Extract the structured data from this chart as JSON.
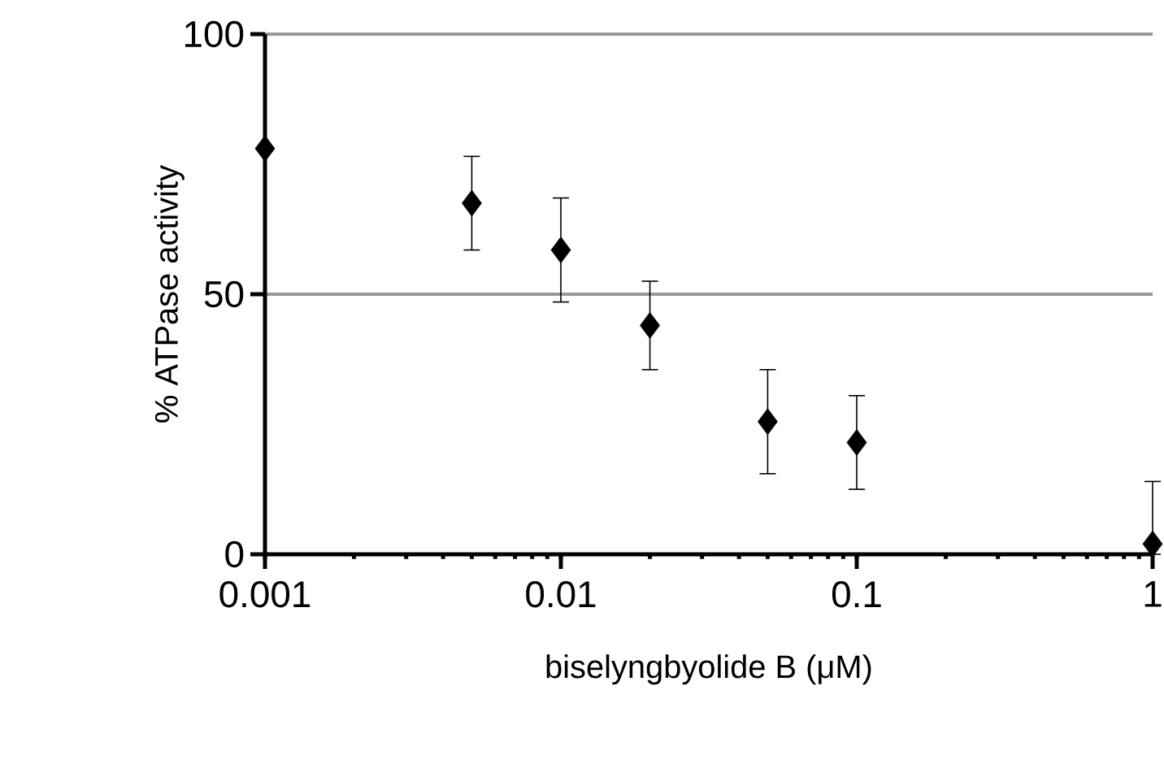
{
  "chart_data": {
    "type": "scatter",
    "xlabel": "biselyngbyolide B (μM)",
    "ylabel": "% ATPase activity",
    "x": [
      0.001,
      0.005,
      0.01,
      0.02,
      0.05,
      0.1,
      1
    ],
    "values": [
      78,
      67.5,
      58.5,
      44,
      25.5,
      21.5,
      2
    ],
    "errors": [
      null,
      9,
      10,
      8.5,
      10,
      9,
      [
        0,
        14
      ]
    ],
    "color": "#000000",
    "marker": "diamond",
    "log": "x",
    "xlim": [
      0.001,
      1
    ],
    "xticks": [
      0.001,
      0.01,
      0.1,
      1
    ],
    "ylim": [
      0,
      100
    ],
    "yticks": [
      0,
      50,
      100
    ],
    "grid": "y"
  }
}
